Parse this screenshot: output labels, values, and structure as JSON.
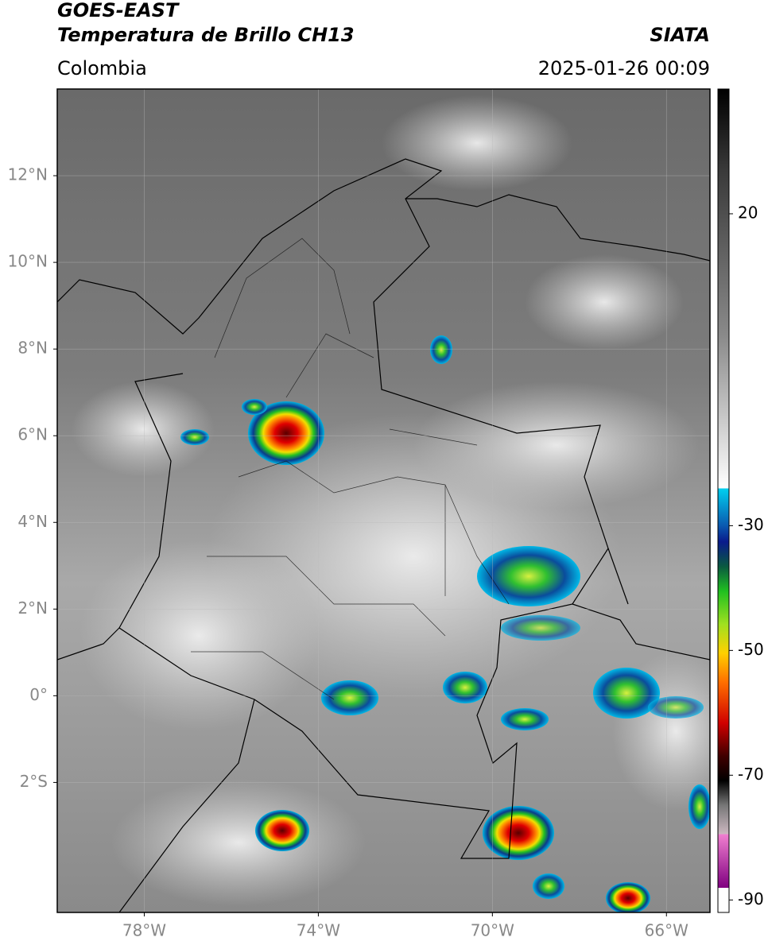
{
  "header": {
    "title_1": "GOES-EAST",
    "title_2": "Temperatura de Brillo CH13",
    "source": "SIATA",
    "region": "Colombia",
    "datetime": "2025-01-26 00:09"
  },
  "map": {
    "xlim": [
      -80,
      -65
    ],
    "ylim": [
      -5,
      14
    ],
    "xticks": [
      {
        "value": -78,
        "label": "78°W"
      },
      {
        "value": -74,
        "label": "74°W"
      },
      {
        "value": -70,
        "label": "70°W"
      },
      {
        "value": -66,
        "label": "66°W"
      }
    ],
    "yticks": [
      {
        "value": 12,
        "label": "12°N"
      },
      {
        "value": 10,
        "label": "10°N"
      },
      {
        "value": 8,
        "label": "8°N"
      },
      {
        "value": 6,
        "label": "6°N"
      },
      {
        "value": 4,
        "label": "4°N"
      },
      {
        "value": 2,
        "label": "2°N"
      },
      {
        "value": 0,
        "label": "0°"
      },
      {
        "value": -2,
        "label": "2°S"
      }
    ]
  },
  "colorbar": {
    "lim": [
      -92,
      40
    ],
    "ticks": [
      20,
      -30,
      -50,
      -70,
      -90
    ]
  }
}
